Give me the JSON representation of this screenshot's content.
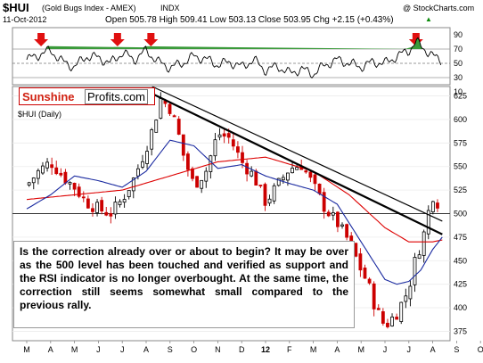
{
  "header": {
    "symbol": "$HUI",
    "name": "(Gold Bugs Index - AMEX)",
    "exchange": "INDX",
    "copyright": "@ StockCharts.com",
    "date": "11-Oct-2012",
    "quote": "Open 505.78  High 509.41  Low 503.13  Close 503.95  Chg +2.15 (+0.43%)",
    "quote_up_arrow": "▲"
  },
  "logo": {
    "part1": "Sunshine",
    "part2": "Profits.com"
  },
  "main_label": "$HUI (Daily)",
  "annotation": "Is the correction already over or about to begin? It may be over as the 500 level has been touched and verified as support and the RSI indicator is no longer overbought. At the same time, the correction still seems somewhat small compared to the previous rally.",
  "colors": {
    "up_candle": "#000000",
    "down_candle": "#cc0000",
    "ma_red": "#dd0000",
    "ma_blue": "#1a2aa0",
    "trendline": "#000000",
    "arrow": "#e01010",
    "rsi_fill": "#3a9a3a",
    "logo_red": "#d02010"
  },
  "chart_data": [
    {
      "type": "line",
      "name": "RSI",
      "ylim": [
        20,
        100
      ],
      "y_ticks": [
        "90",
        "70",
        "50",
        "30",
        "10"
      ],
      "reference_levels": [
        70,
        50,
        30
      ],
      "arrows_at_month": [
        0.6,
        3.8,
        5.2,
        16.3
      ],
      "x_month_index": [
        0,
        0.5,
        1,
        1.5,
        2,
        2.5,
        3,
        3.5,
        4,
        4.5,
        5,
        5.5,
        6,
        6.5,
        7,
        7.5,
        8,
        8.5,
        9,
        9.5,
        10,
        10.5,
        11,
        11.5,
        12,
        12.5,
        13,
        13.5,
        14,
        14.5,
        15,
        15.5,
        16,
        16.3,
        16.6,
        17,
        17.4
      ],
      "values": [
        55,
        62,
        68,
        52,
        45,
        60,
        58,
        50,
        65,
        55,
        68,
        52,
        44,
        50,
        60,
        56,
        48,
        52,
        45,
        55,
        40,
        46,
        36,
        42,
        35,
        48,
        55,
        50,
        45,
        52,
        50,
        60,
        68,
        80,
        72,
        60,
        54
      ]
    },
    {
      "type": "candlestick",
      "name": "$HUI (Daily)",
      "ylim": [
        365,
        635
      ],
      "y_ticks": [
        375,
        400,
        425,
        450,
        475,
        500,
        525,
        550,
        575,
        600,
        625
      ],
      "x_labels": [
        "M",
        "A",
        "M",
        "J",
        "J",
        "A",
        "S",
        "O",
        "N",
        "D",
        "12",
        "F",
        "M",
        "A",
        "M",
        "J",
        "J",
        "A",
        "S",
        "O"
      ],
      "reference_level": 500,
      "close_month_index": [
        0,
        0.5,
        1,
        1.5,
        2,
        2.5,
        3,
        3.5,
        4,
        4.5,
        5,
        5.3,
        5.6,
        6,
        6.3,
        6.6,
        7,
        7.5,
        8,
        8.5,
        9,
        9.5,
        10,
        10.5,
        11,
        11.5,
        12,
        12.5,
        13,
        13.5,
        14,
        14.3,
        14.6,
        15,
        15.5,
        16,
        16.2,
        16.4,
        16.6,
        16.8,
        17,
        17.2,
        17.4
      ],
      "close_values": [
        530,
        545,
        555,
        540,
        528,
        512,
        505,
        500,
        515,
        538,
        570,
        592,
        622,
        612,
        590,
        558,
        530,
        545,
        585,
        580,
        555,
        540,
        512,
        530,
        548,
        552,
        530,
        505,
        490,
        470,
        440,
        425,
        400,
        380,
        395,
        420,
        445,
        460,
        475,
        500,
        520,
        512,
        504
      ],
      "ma_red": {
        "x_month_index": [
          0,
          2,
          4,
          6,
          8,
          10,
          12,
          13.5,
          15,
          16,
          17,
          17.4
        ],
        "values": [
          515,
          520,
          525,
          540,
          555,
          560,
          545,
          520,
          485,
          470,
          470,
          472
        ]
      },
      "ma_blue": {
        "x_month_index": [
          0,
          1,
          2,
          3,
          4,
          5,
          6,
          7,
          8,
          9,
          10,
          11,
          12,
          13,
          13.8,
          14.5,
          15,
          15.5,
          16,
          16.5,
          17,
          17.4
        ],
        "values": [
          505,
          520,
          540,
          535,
          528,
          545,
          578,
          572,
          548,
          552,
          540,
          532,
          525,
          510,
          478,
          450,
          430,
          425,
          428,
          440,
          462,
          475
        ]
      },
      "trendlines": [
        {
          "from": [
            5.25,
            635
          ],
          "to": [
            17.4,
            492
          ]
        },
        {
          "from": [
            5.2,
            628
          ],
          "to": [
            17.4,
            478
          ]
        }
      ]
    }
  ]
}
